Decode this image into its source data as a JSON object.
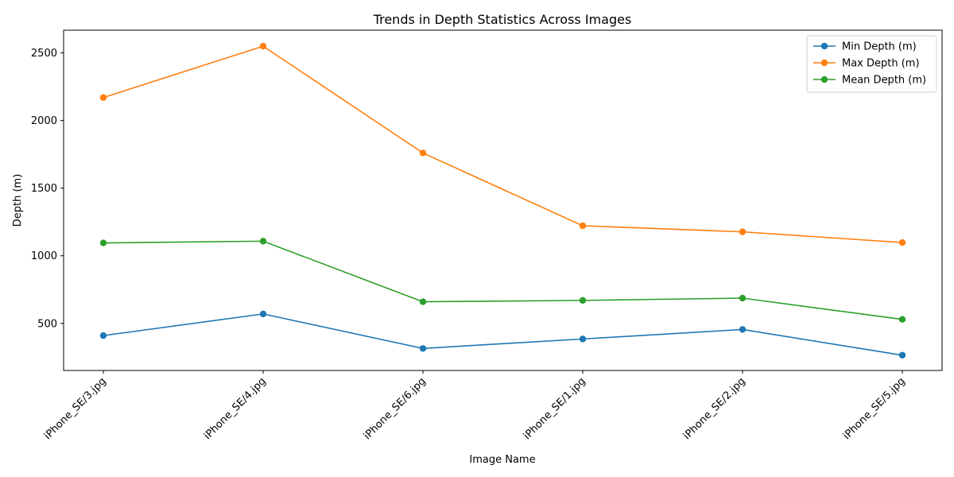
{
  "chart_data": {
    "type": "line",
    "title": "Trends in Depth Statistics Across Images",
    "xlabel": "Image Name",
    "ylabel": "Depth (m)",
    "categories": [
      "iPhone_SE/3.jpg",
      "iPhone_SE/4.jpg",
      "iPhone_SE/6.jpg",
      "iPhone_SE/1.jpg",
      "iPhone_SE/2.jpg",
      "iPhone_SE/5.jpg"
    ],
    "ylim": [
      152,
      2668
    ],
    "yticks": [
      500,
      1000,
      1500,
      2000,
      2500
    ],
    "grid": false,
    "legend_position": "top-right",
    "series": [
      {
        "name": "Min Depth (m)",
        "color": "#1f77b4",
        "values": [
          410,
          570,
          315,
          385,
          455,
          265
        ]
      },
      {
        "name": "Max Depth (m)",
        "color": "#ff7f0e",
        "values": [
          2170,
          2550,
          1760,
          1222,
          1177,
          1098
        ]
      },
      {
        "name": "Mean Depth (m)",
        "color": "#2ca02c",
        "values": [
          1095,
          1108,
          660,
          670,
          687,
          530
        ]
      }
    ]
  }
}
